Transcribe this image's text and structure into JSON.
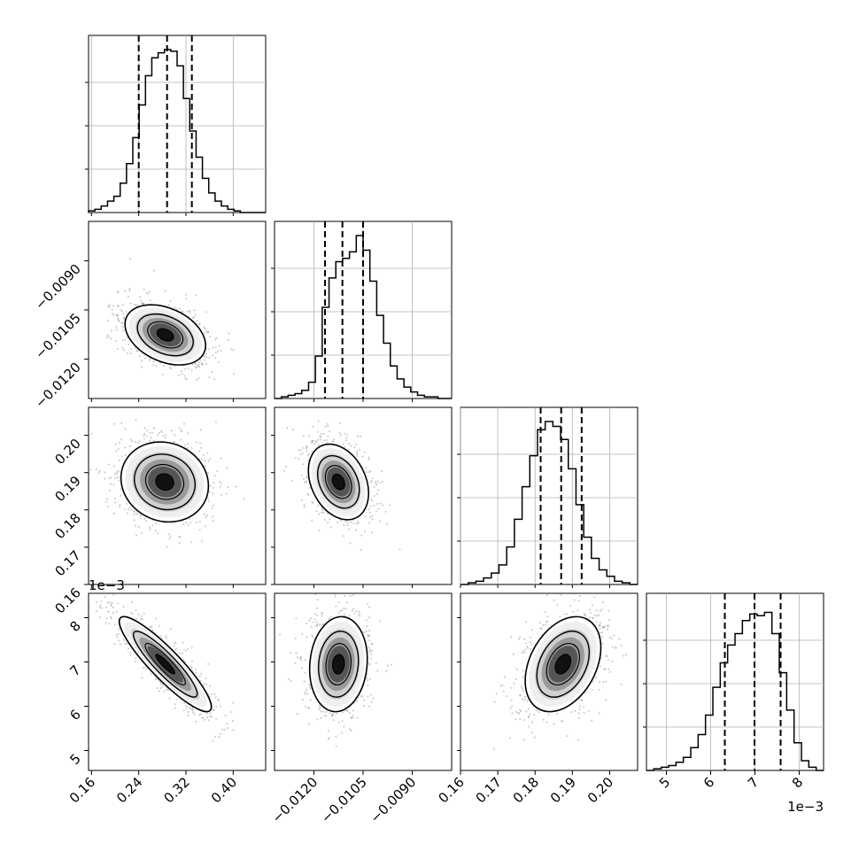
{
  "chart_data": {
    "type": "corner",
    "grid": true,
    "parameters": [
      {
        "ticks": [
          0.16,
          0.24,
          0.32,
          0.4
        ],
        "tick_labels": [
          "0.16",
          "0.24",
          "0.32",
          "0.40"
        ],
        "range": [
          0.155,
          0.455
        ],
        "quantiles": [
          0.24,
          0.288,
          0.33
        ],
        "offset_label": ""
      },
      {
        "ticks": [
          -0.012,
          -0.0105,
          -0.009
        ],
        "tick_labels": [
          "−0.0120",
          "−0.0105",
          "−0.0090"
        ],
        "range": [
          -0.0132,
          -0.0078
        ],
        "quantiles": [
          -0.01166,
          -0.01113,
          -0.0105
        ],
        "offset_label": ""
      },
      {
        "ticks": [
          0.16,
          0.17,
          0.18,
          0.19,
          0.2
        ],
        "tick_labels": [
          "0.16",
          "0.17",
          "0.18",
          "0.19",
          "0.20"
        ],
        "range": [
          0.16,
          0.2075
        ],
        "quantiles": [
          0.1815,
          0.187,
          0.1925
        ],
        "offset_label": ""
      },
      {
        "ticks": [
          5,
          6,
          7,
          8
        ],
        "tick_labels": [
          "5",
          "6",
          "7",
          "8"
        ],
        "range": [
          4.55,
          8.55
        ],
        "quantiles": [
          6.32,
          6.99,
          7.58
        ],
        "offset_label": "1e−3"
      }
    ],
    "histograms": [
      [
        1,
        2,
        4,
        7,
        10,
        18,
        30,
        46,
        66,
        84,
        95,
        98,
        100,
        99,
        90,
        70,
        50,
        34,
        21,
        12,
        7,
        4,
        2,
        1,
        0,
        0,
        0,
        0
      ],
      [
        0,
        1,
        2,
        3,
        5,
        10,
        26,
        56,
        74,
        84,
        86,
        90,
        100,
        91,
        72,
        51,
        34,
        20,
        12,
        7,
        4,
        2,
        1,
        1,
        0,
        0
      ],
      [
        0,
        1,
        2,
        4,
        7,
        12,
        23,
        40,
        60,
        79,
        95,
        100,
        97,
        89,
        71,
        49,
        29,
        16,
        9,
        5,
        2,
        1,
        0
      ],
      [
        0,
        1,
        2,
        3,
        5,
        8,
        14,
        22,
        34,
        51,
        66,
        77,
        84,
        92,
        96,
        95,
        97,
        84,
        60,
        37,
        17,
        6,
        2,
        0
      ]
    ],
    "pairs": [
      {
        "x": 0,
        "y": 1,
        "mean": [
          0.285,
          -0.01126
        ],
        "std": [
          0.035,
          0.00047
        ],
        "rho": -0.35
      },
      {
        "x": 0,
        "y": 2,
        "mean": [
          0.284,
          0.1875
        ],
        "std": [
          0.038,
          0.0055
        ],
        "rho": -0.1
      },
      {
        "x": 1,
        "y": 2,
        "mean": [
          -0.01125,
          0.1875
        ],
        "std": [
          0.00047,
          0.0052
        ],
        "rho": -0.3
      },
      {
        "x": 0,
        "y": 3,
        "mean": [
          0.285,
          6.95
        ],
        "std": [
          0.04,
          0.55
        ],
        "rho": -0.9
      },
      {
        "x": 1,
        "y": 3,
        "mean": [
          -0.01125,
          6.95
        ],
        "std": [
          0.00045,
          0.55
        ],
        "rho": 0.1
      },
      {
        "x": 2,
        "y": 3,
        "mean": [
          0.1875,
          6.95
        ],
        "std": [
          0.0052,
          0.55
        ],
        "rho": 0.35
      }
    ]
  }
}
